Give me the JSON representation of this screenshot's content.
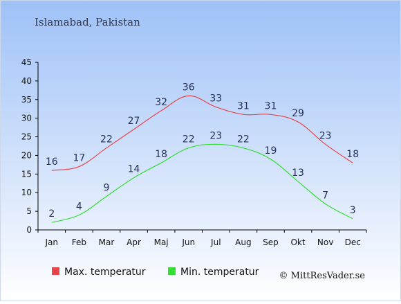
{
  "title": "Islamabad, Pakistan",
  "credit": "© MittResVader.se",
  "colors": {
    "background_top": "#9ec1f7",
    "background_bottom": "#ffffff",
    "max_series": "#e8434b",
    "min_series": "#33dd33",
    "axis": "#000000",
    "label": "#26305a"
  },
  "chart_data": {
    "type": "line",
    "title": "Islamabad, Pakistan",
    "xlabel": "",
    "ylabel": "",
    "ylim": [
      0,
      45
    ],
    "yticks": [
      0,
      5,
      10,
      15,
      20,
      25,
      30,
      35,
      40,
      45
    ],
    "grid": false,
    "legend_position": "bottom-left",
    "categories": [
      "Jan",
      "Feb",
      "Mar",
      "Apr",
      "Maj",
      "Jun",
      "Jul",
      "Aug",
      "Sep",
      "Okt",
      "Nov",
      "Dec"
    ],
    "series": [
      {
        "name": "Max. temperatur",
        "color": "#e8434b",
        "values": [
          16,
          17,
          22,
          27,
          32,
          36,
          33,
          31,
          31,
          29,
          23,
          18
        ]
      },
      {
        "name": "Min. temperatur",
        "color": "#33dd33",
        "values": [
          2,
          4,
          9,
          14,
          18,
          22,
          23,
          22,
          19,
          13,
          7,
          3
        ]
      }
    ]
  }
}
